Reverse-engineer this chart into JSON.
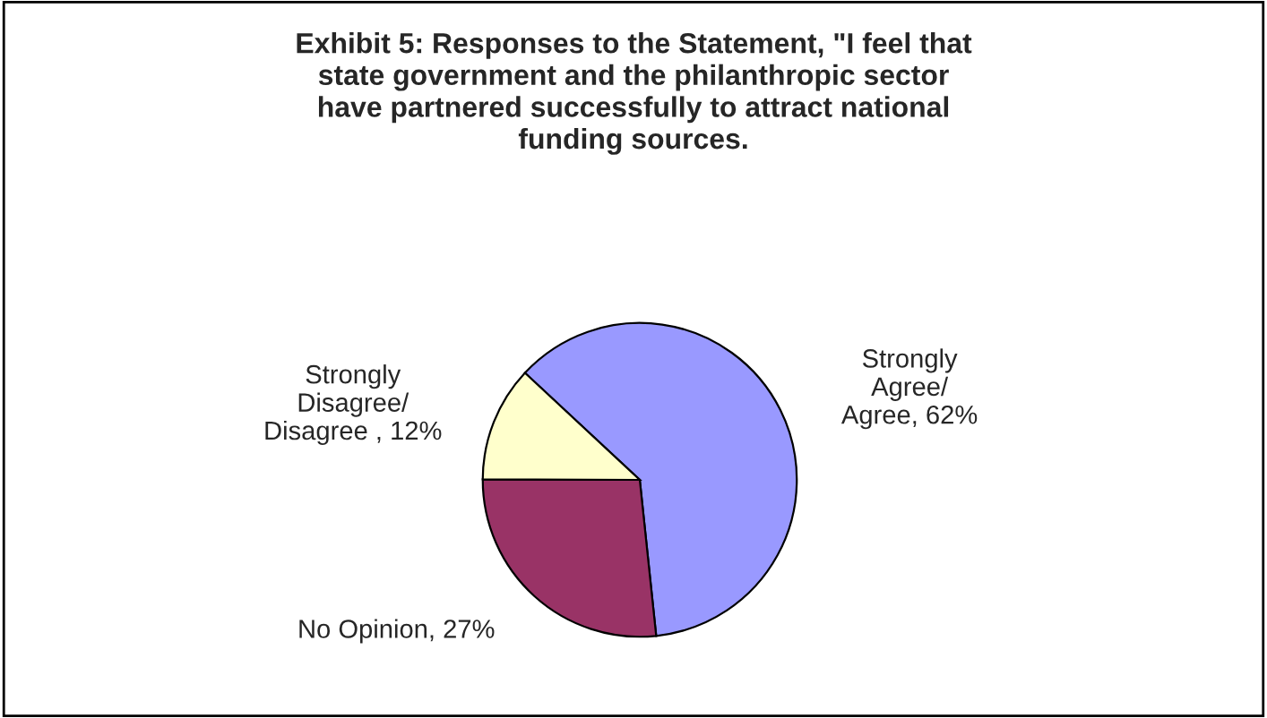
{
  "chart_data": {
    "type": "pie",
    "title": "Exhibit 5: Responses to the Statement, \"I feel that\nstate government and the philanthropic sector\nhave partnered successfully to attract national\nfunding sources.",
    "categories": [
      "Strongly\nAgree/\nAgree",
      "No Opinion",
      "Strongly\nDisagree/\nDisagree "
    ],
    "values": [
      62,
      27,
      12
    ],
    "colors": [
      "#9999ff",
      "#993366",
      "#ffffcc"
    ],
    "value_labels": [
      "62%",
      "27%",
      "12%"
    ]
  }
}
